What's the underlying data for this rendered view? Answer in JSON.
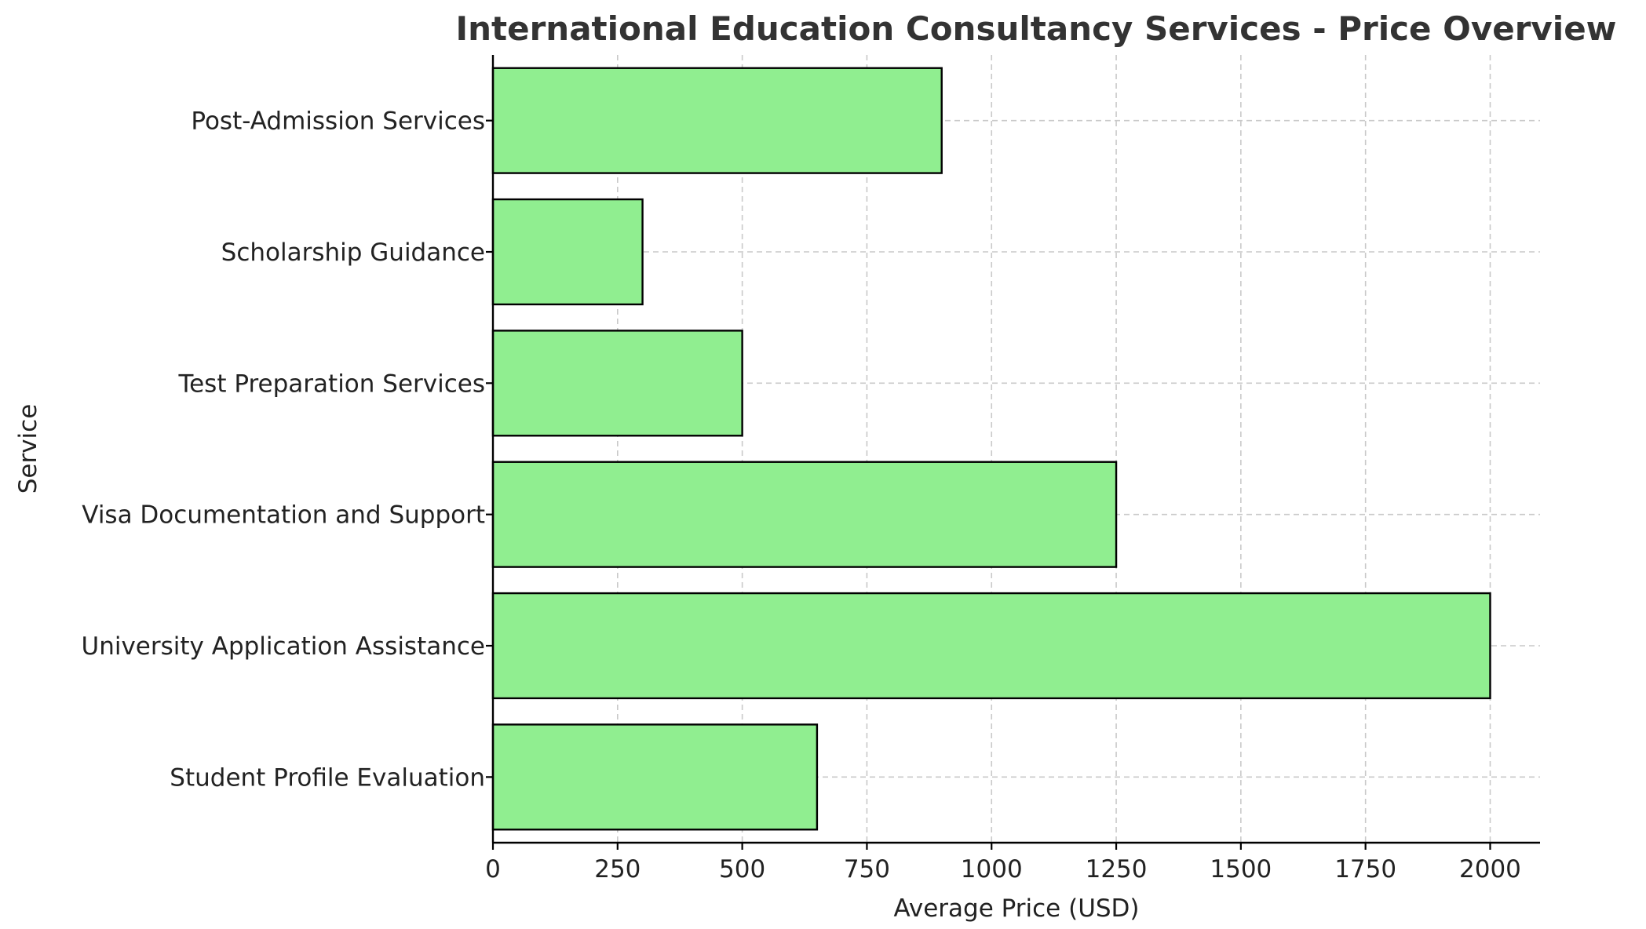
{
  "chart_data": {
    "type": "bar",
    "orientation": "horizontal",
    "title": "International Education Consultancy Services - Price Overview",
    "xlabel": "Average Price (USD)",
    "ylabel": "Service",
    "categories": [
      "Student Profile Evaluation",
      "University Application Assistance",
      "Visa Documentation and Support",
      "Test Preparation Services",
      "Scholarship Guidance",
      "Post-Admission Services"
    ],
    "values": [
      650,
      2000,
      1250,
      500,
      300,
      900
    ],
    "xlim": [
      0,
      2100
    ],
    "xticks": [
      0,
      250,
      500,
      750,
      1000,
      1250,
      1500,
      1750,
      2000
    ],
    "grid": true,
    "bar_color": "#90ee90",
    "edge_color": "#000000"
  }
}
